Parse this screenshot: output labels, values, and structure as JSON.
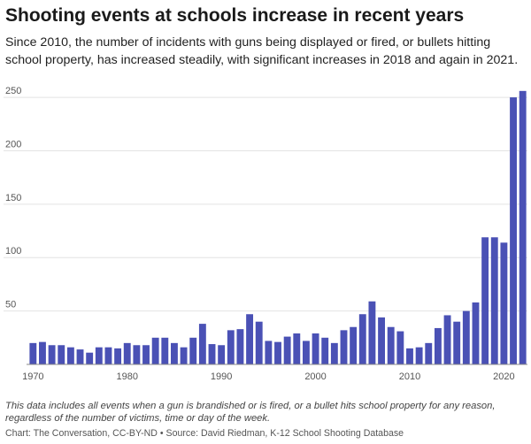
{
  "header": {
    "title": "Shooting events at schools increase in recent years",
    "subtitle": "Since 2010, the number of incidents with guns being displayed or fired, or bullets hitting school property, has increased steadily, with significant increases in 2018 and again in 2021."
  },
  "footer": {
    "note": "This data includes all events when a gun is brandished or is fired, or a bullet hits school property for any reason, regardless of the number of victims, time or day of the week.",
    "credit": "Chart: The Conversation, CC-BY-ND • Source: David Riedman, K-12 School Shooting Database"
  },
  "colors": {
    "bar": "#4a51b5",
    "grid": "#e3e3e3",
    "axis": "#888888"
  },
  "chart_data": {
    "type": "bar",
    "title": "",
    "xlabel": "",
    "ylabel": "",
    "ylim": [
      0,
      260
    ],
    "grid": true,
    "y_ticks": [
      50,
      100,
      150,
      200,
      250
    ],
    "x_ticks": [
      1970,
      1980,
      1990,
      2000,
      2010,
      2020
    ],
    "x": [
      1970,
      1971,
      1972,
      1973,
      1974,
      1975,
      1976,
      1977,
      1978,
      1979,
      1980,
      1981,
      1982,
      1983,
      1984,
      1985,
      1986,
      1987,
      1988,
      1989,
      1990,
      1991,
      1992,
      1993,
      1994,
      1995,
      1996,
      1997,
      1998,
      1999,
      2000,
      2001,
      2002,
      2003,
      2004,
      2005,
      2006,
      2007,
      2008,
      2009,
      2010,
      2011,
      2012,
      2013,
      2014,
      2015,
      2016,
      2017,
      2018,
      2019,
      2020,
      2021,
      2022
    ],
    "values": [
      20,
      21,
      18,
      18,
      16,
      14,
      11,
      16,
      16,
      15,
      20,
      18,
      18,
      25,
      25,
      20,
      16,
      25,
      38,
      19,
      18,
      32,
      33,
      47,
      40,
      22,
      21,
      26,
      29,
      22,
      29,
      25,
      20,
      32,
      35,
      47,
      59,
      44,
      35,
      31,
      15,
      16,
      20,
      34,
      46,
      40,
      50,
      58,
      119,
      119,
      114,
      250,
      256
    ]
  }
}
